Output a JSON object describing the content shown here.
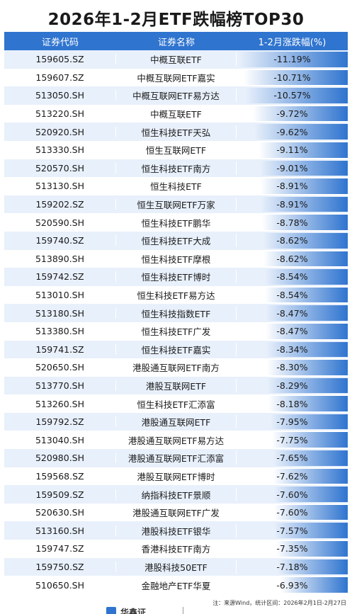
{
  "title": "2026年1-2月ETF跌幅榜TOP30",
  "headers": {
    "code": "证券代码",
    "name": "证券名称",
    "change": "1-2月涨跌幅(%)"
  },
  "note": "注：来源Wind，统计区间：2026年2月1日-2月27日",
  "logo_text": "华鑫证",
  "colors": {
    "header": "#2f74cf",
    "odd_row": "#e8f0fb",
    "bar": "#2f74cf"
  },
  "chart_data": {
    "type": "table",
    "columns": [
      "证券代码",
      "证券名称",
      "1-2月涨跌幅(%)"
    ],
    "rows": [
      {
        "code": "159605.SZ",
        "name": "中概互联ETF",
        "change": "-11.19%",
        "value": -11.19
      },
      {
        "code": "159607.SZ",
        "name": "中概互联网ETF嘉实",
        "change": "-10.71%",
        "value": -10.71
      },
      {
        "code": "513050.SH",
        "name": "中概互联网ETF易方达",
        "change": "-10.57%",
        "value": -10.57
      },
      {
        "code": "513220.SH",
        "name": "中概互联ETF",
        "change": "-9.72%",
        "value": -9.72
      },
      {
        "code": "520920.SH",
        "name": "恒生科技ETF天弘",
        "change": "-9.62%",
        "value": -9.62
      },
      {
        "code": "513330.SH",
        "name": "恒生互联网ETF",
        "change": "-9.11%",
        "value": -9.11
      },
      {
        "code": "520570.SH",
        "name": "恒生科技ETF南方",
        "change": "-9.01%",
        "value": -9.01
      },
      {
        "code": "513130.SH",
        "name": "恒生科技ETF",
        "change": "-8.91%",
        "value": -8.91
      },
      {
        "code": "159202.SZ",
        "name": "恒生互联网ETF万家",
        "change": "-8.91%",
        "value": -8.91
      },
      {
        "code": "520590.SH",
        "name": "恒生科技ETF鹏华",
        "change": "-8.78%",
        "value": -8.78
      },
      {
        "code": "159740.SZ",
        "name": "恒生科技ETF大成",
        "change": "-8.62%",
        "value": -8.62
      },
      {
        "code": "513890.SH",
        "name": "恒生科技ETF摩根",
        "change": "-8.62%",
        "value": -8.62
      },
      {
        "code": "159742.SZ",
        "name": "恒生科技ETF博时",
        "change": "-8.54%",
        "value": -8.54
      },
      {
        "code": "513010.SH",
        "name": "恒生科技ETF易方达",
        "change": "-8.54%",
        "value": -8.54
      },
      {
        "code": "513180.SH",
        "name": "恒生科技指数ETF",
        "change": "-8.47%",
        "value": -8.47
      },
      {
        "code": "513380.SH",
        "name": "恒生科技ETF广发",
        "change": "-8.47%",
        "value": -8.47
      },
      {
        "code": "159741.SZ",
        "name": "恒生科技ETF嘉实",
        "change": "-8.34%",
        "value": -8.34
      },
      {
        "code": "520650.SH",
        "name": "港股通互联网ETF南方",
        "change": "-8.30%",
        "value": -8.3
      },
      {
        "code": "513770.SH",
        "name": "港股互联网ETF",
        "change": "-8.29%",
        "value": -8.29
      },
      {
        "code": "513260.SH",
        "name": "恒生科技ETF汇添富",
        "change": "-8.18%",
        "value": -8.18
      },
      {
        "code": "159792.SZ",
        "name": "港股通互联网ETF",
        "change": "-7.95%",
        "value": -7.95
      },
      {
        "code": "513040.SH",
        "name": "港股通互联网ETF易方达",
        "change": "-7.75%",
        "value": -7.75
      },
      {
        "code": "520980.SH",
        "name": "港股通互联网ETF汇添富",
        "change": "-7.65%",
        "value": -7.65
      },
      {
        "code": "159568.SZ",
        "name": "港股互联网ETF博时",
        "change": "-7.62%",
        "value": -7.62
      },
      {
        "code": "159509.SZ",
        "name": "纳指科技ETF景顺",
        "change": "-7.60%",
        "value": -7.6
      },
      {
        "code": "520630.SH",
        "name": "港股通互联网ETF广发",
        "change": "-7.60%",
        "value": -7.6
      },
      {
        "code": "513160.SH",
        "name": "港股科技ETF银华",
        "change": "-7.57%",
        "value": -7.57
      },
      {
        "code": "159747.SZ",
        "name": "香港科技ETF南方",
        "change": "-7.35%",
        "value": -7.35
      },
      {
        "code": "159750.SZ",
        "name": "港股科技50ETF",
        "change": "-7.18%",
        "value": -7.18
      },
      {
        "code": "510650.SH",
        "name": "金融地产ETF华夏",
        "change": "-6.93%",
        "value": -6.93
      }
    ]
  }
}
